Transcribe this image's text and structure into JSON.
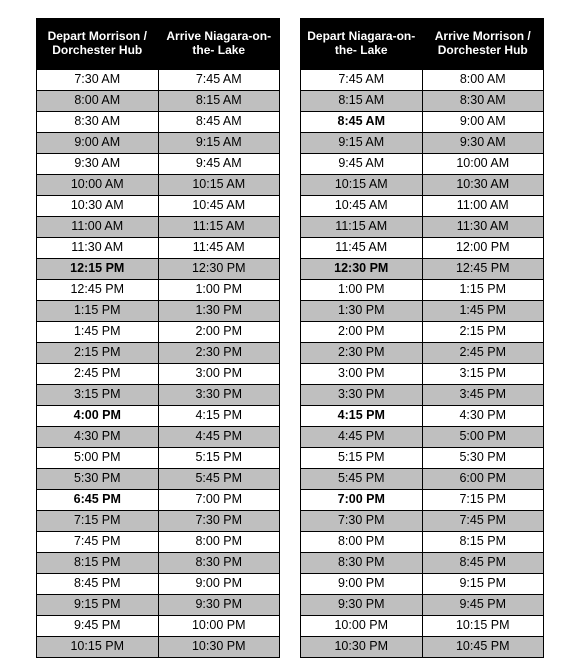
{
  "colors": {
    "header_bg": "#000000",
    "header_fg": "#ffffff",
    "row_even_bg": "#ffffff",
    "row_odd_bg": "#bfbfbf",
    "border": "#000000"
  },
  "font": {
    "family": "Arial",
    "header_size_pt": 9,
    "cell_size_pt": 9.5
  },
  "tables": [
    {
      "id": "outbound",
      "columns": [
        "Depart\nMorrison /\nDorchester Hub",
        "Arrive\nNiagara-on-the-\nLake"
      ],
      "rows": [
        {
          "cells": [
            "7:30 AM",
            "7:45 AM"
          ],
          "bold": [
            false,
            false
          ]
        },
        {
          "cells": [
            "8:00 AM",
            "8:15 AM"
          ],
          "bold": [
            false,
            false
          ]
        },
        {
          "cells": [
            "8:30 AM",
            "8:45 AM"
          ],
          "bold": [
            false,
            false
          ]
        },
        {
          "cells": [
            "9:00 AM",
            "9:15 AM"
          ],
          "bold": [
            false,
            false
          ]
        },
        {
          "cells": [
            "9:30 AM",
            "9:45 AM"
          ],
          "bold": [
            false,
            false
          ]
        },
        {
          "cells": [
            "10:00 AM",
            "10:15 AM"
          ],
          "bold": [
            false,
            false
          ]
        },
        {
          "cells": [
            "10:30 AM",
            "10:45 AM"
          ],
          "bold": [
            false,
            false
          ]
        },
        {
          "cells": [
            "11:00 AM",
            "11:15 AM"
          ],
          "bold": [
            false,
            false
          ]
        },
        {
          "cells": [
            "11:30 AM",
            "11:45 AM"
          ],
          "bold": [
            false,
            false
          ]
        },
        {
          "cells": [
            "12:15 PM",
            "12:30 PM"
          ],
          "bold": [
            true,
            false
          ]
        },
        {
          "cells": [
            "12:45 PM",
            "1:00 PM"
          ],
          "bold": [
            false,
            false
          ]
        },
        {
          "cells": [
            "1:15 PM",
            "1:30 PM"
          ],
          "bold": [
            false,
            false
          ]
        },
        {
          "cells": [
            "1:45 PM",
            "2:00 PM"
          ],
          "bold": [
            false,
            false
          ]
        },
        {
          "cells": [
            "2:15 PM",
            "2:30 PM"
          ],
          "bold": [
            false,
            false
          ]
        },
        {
          "cells": [
            "2:45 PM",
            "3:00 PM"
          ],
          "bold": [
            false,
            false
          ]
        },
        {
          "cells": [
            "3:15 PM",
            "3:30 PM"
          ],
          "bold": [
            false,
            false
          ]
        },
        {
          "cells": [
            "4:00 PM",
            "4:15 PM"
          ],
          "bold": [
            true,
            false
          ]
        },
        {
          "cells": [
            "4:30 PM",
            "4:45 PM"
          ],
          "bold": [
            false,
            false
          ]
        },
        {
          "cells": [
            "5:00 PM",
            "5:15 PM"
          ],
          "bold": [
            false,
            false
          ]
        },
        {
          "cells": [
            "5:30 PM",
            "5:45 PM"
          ],
          "bold": [
            false,
            false
          ]
        },
        {
          "cells": [
            "6:45 PM",
            "7:00 PM"
          ],
          "bold": [
            true,
            false
          ]
        },
        {
          "cells": [
            "7:15 PM",
            "7:30 PM"
          ],
          "bold": [
            false,
            false
          ]
        },
        {
          "cells": [
            "7:45 PM",
            "8:00 PM"
          ],
          "bold": [
            false,
            false
          ]
        },
        {
          "cells": [
            "8:15 PM",
            "8:30 PM"
          ],
          "bold": [
            false,
            false
          ]
        },
        {
          "cells": [
            "8:45 PM",
            "9:00 PM"
          ],
          "bold": [
            false,
            false
          ]
        },
        {
          "cells": [
            "9:15 PM",
            "9:30 PM"
          ],
          "bold": [
            false,
            false
          ]
        },
        {
          "cells": [
            "9:45 PM",
            "10:00 PM"
          ],
          "bold": [
            false,
            false
          ]
        },
        {
          "cells": [
            "10:15 PM",
            "10:30 PM"
          ],
          "bold": [
            false,
            false
          ]
        }
      ]
    },
    {
      "id": "inbound",
      "columns": [
        "Depart\nNiagara-on-the-\nLake",
        "Arrive\nMorrison /\nDorchester Hub"
      ],
      "rows": [
        {
          "cells": [
            "7:45 AM",
            "8:00 AM"
          ],
          "bold": [
            false,
            false
          ]
        },
        {
          "cells": [
            "8:15 AM",
            "8:30 AM"
          ],
          "bold": [
            false,
            false
          ]
        },
        {
          "cells": [
            "8:45 AM",
            "9:00 AM"
          ],
          "bold": [
            true,
            false
          ]
        },
        {
          "cells": [
            "9:15 AM",
            "9:30 AM"
          ],
          "bold": [
            false,
            false
          ]
        },
        {
          "cells": [
            "9:45 AM",
            "10:00 AM"
          ],
          "bold": [
            false,
            false
          ]
        },
        {
          "cells": [
            "10:15 AM",
            "10:30 AM"
          ],
          "bold": [
            false,
            false
          ]
        },
        {
          "cells": [
            "10:45 AM",
            "11:00 AM"
          ],
          "bold": [
            false,
            false
          ]
        },
        {
          "cells": [
            "11:15 AM",
            "11:30 AM"
          ],
          "bold": [
            false,
            false
          ]
        },
        {
          "cells": [
            "11:45 AM",
            "12:00 PM"
          ],
          "bold": [
            false,
            false
          ]
        },
        {
          "cells": [
            "12:30 PM",
            "12:45 PM"
          ],
          "bold": [
            true,
            false
          ]
        },
        {
          "cells": [
            "1:00 PM",
            "1:15 PM"
          ],
          "bold": [
            false,
            false
          ]
        },
        {
          "cells": [
            "1:30 PM",
            "1:45 PM"
          ],
          "bold": [
            false,
            false
          ]
        },
        {
          "cells": [
            "2:00 PM",
            "2:15 PM"
          ],
          "bold": [
            false,
            false
          ]
        },
        {
          "cells": [
            "2:30 PM",
            "2:45 PM"
          ],
          "bold": [
            false,
            false
          ]
        },
        {
          "cells": [
            "3:00 PM",
            "3:15 PM"
          ],
          "bold": [
            false,
            false
          ]
        },
        {
          "cells": [
            "3:30 PM",
            "3:45 PM"
          ],
          "bold": [
            false,
            false
          ]
        },
        {
          "cells": [
            "4:15 PM",
            "4:30 PM"
          ],
          "bold": [
            true,
            false
          ]
        },
        {
          "cells": [
            "4:45 PM",
            "5:00 PM"
          ],
          "bold": [
            false,
            false
          ]
        },
        {
          "cells": [
            "5:15 PM",
            "5:30 PM"
          ],
          "bold": [
            false,
            false
          ]
        },
        {
          "cells": [
            "5:45 PM",
            "6:00 PM"
          ],
          "bold": [
            false,
            false
          ]
        },
        {
          "cells": [
            "7:00 PM",
            "7:15 PM"
          ],
          "bold": [
            true,
            false
          ]
        },
        {
          "cells": [
            "7:30 PM",
            "7:45 PM"
          ],
          "bold": [
            false,
            false
          ]
        },
        {
          "cells": [
            "8:00 PM",
            "8:15 PM"
          ],
          "bold": [
            false,
            false
          ]
        },
        {
          "cells": [
            "8:30 PM",
            "8:45 PM"
          ],
          "bold": [
            false,
            false
          ]
        },
        {
          "cells": [
            "9:00 PM",
            "9:15 PM"
          ],
          "bold": [
            false,
            false
          ]
        },
        {
          "cells": [
            "9:30 PM",
            "9:45 PM"
          ],
          "bold": [
            false,
            false
          ]
        },
        {
          "cells": [
            "10:00 PM",
            "10:15 PM"
          ],
          "bold": [
            false,
            false
          ]
        },
        {
          "cells": [
            "10:30 PM",
            "10:45 PM"
          ],
          "bold": [
            false,
            false
          ]
        }
      ]
    }
  ]
}
